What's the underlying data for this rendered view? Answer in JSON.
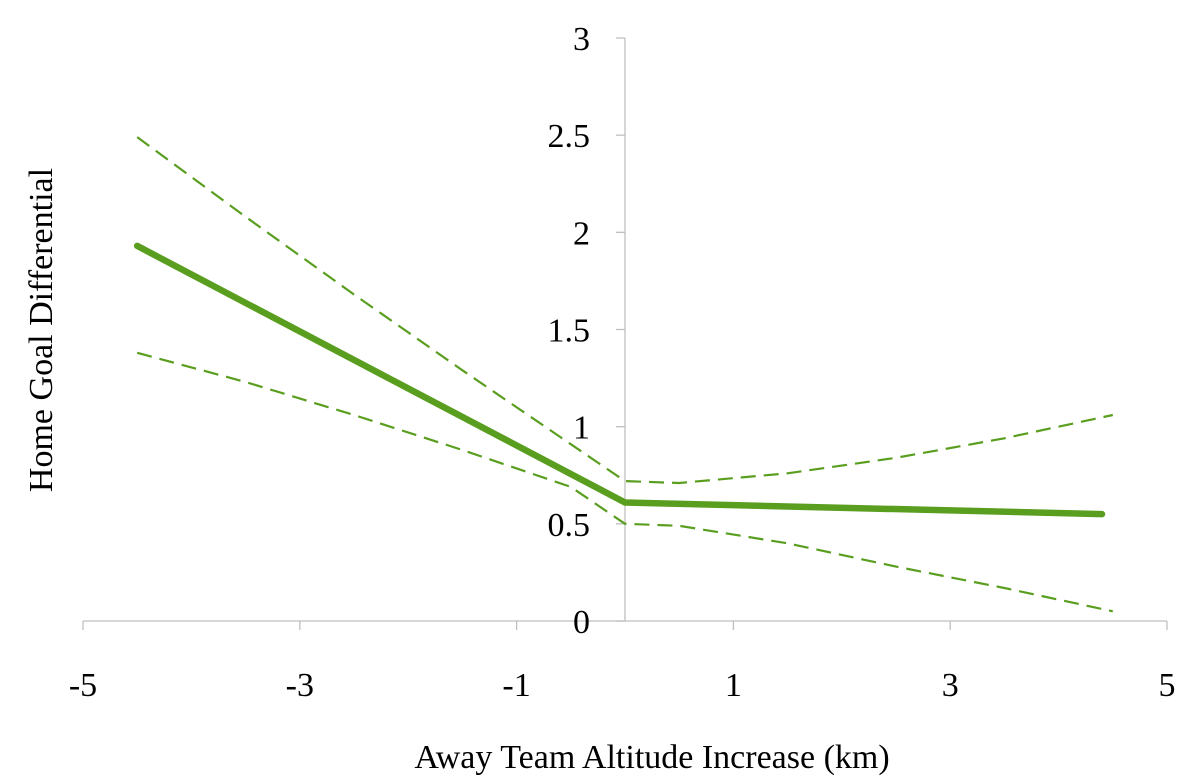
{
  "chart_data": {
    "type": "line",
    "title": "",
    "xlabel": "Away Team Altitude Increase (km)",
    "ylabel": "Home Goal Differential",
    "xlim": [
      -5,
      5
    ],
    "ylim": [
      0,
      3
    ],
    "xticks": [
      -5,
      -3,
      -1,
      1,
      3,
      5
    ],
    "yticks": [
      0,
      0.5,
      1,
      1.5,
      2,
      2.5,
      3
    ],
    "xtick_labels": [
      "-5",
      "-3",
      "-1",
      "1",
      "3",
      "5"
    ],
    "ytick_labels": [
      "0",
      "0.5",
      "1",
      "1.5",
      "2",
      "2.5",
      "3"
    ],
    "grid": false,
    "legend": "none",
    "color": "#5a9e1f",
    "series": [
      {
        "style": "solid",
        "x": [
          -4.5,
          0,
          4.4
        ],
        "y": [
          1.93,
          0.61,
          0.55
        ]
      },
      {
        "style": "dashed",
        "x": [
          -4.5,
          -3.5,
          -2.5,
          -1.5,
          -0.5,
          0,
          0.5,
          1.5,
          2.5,
          3.5,
          4.5
        ],
        "y": [
          2.49,
          2.08,
          1.68,
          1.29,
          0.91,
          0.72,
          0.71,
          0.76,
          0.84,
          0.94,
          1.06
        ]
      },
      {
        "style": "dashed",
        "x": [
          -4.5,
          -3.5,
          -2.5,
          -1.5,
          -0.5,
          0,
          0.5,
          1.5,
          2.5,
          3.5,
          4.5
        ],
        "y": [
          1.38,
          1.23,
          1.06,
          0.88,
          0.69,
          0.5,
          0.49,
          0.4,
          0.28,
          0.17,
          0.05
        ]
      }
    ]
  }
}
